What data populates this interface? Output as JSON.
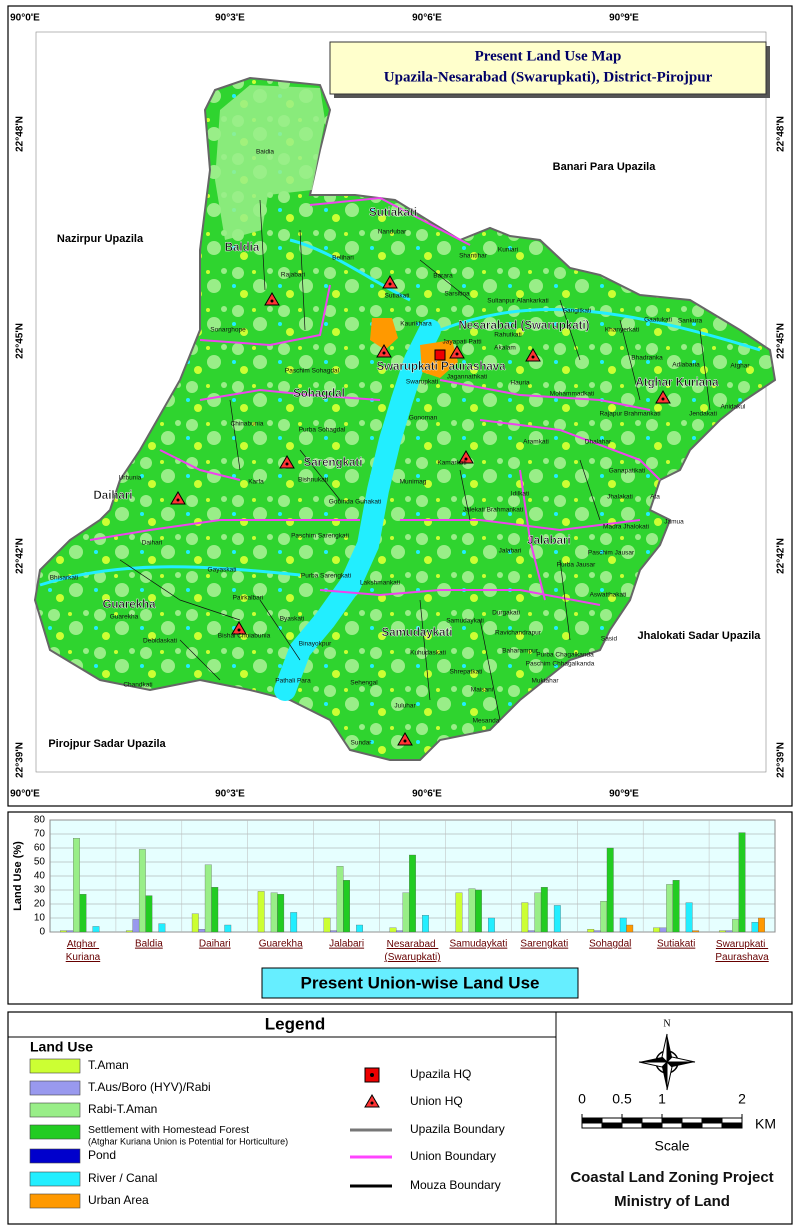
{
  "map": {
    "title": [
      "Present Land Use Map",
      "Upazila-Nesarabad (Swarupkati), District-Pirojpur"
    ],
    "x_labels": [
      "90°0'E",
      "90°3'E",
      "90°6'E",
      "90°9'E"
    ],
    "y_labels": [
      "22°48'N",
      "22°45'N",
      "22°42'N",
      "22°39'N"
    ],
    "neighbors": [
      "Banari Para Upazila",
      "Nazirpur Upazila",
      "Jhalokati Sadar Upazila",
      "Pirojpur Sadar Upazila"
    ],
    "unions": [
      "Sutiakati",
      "Baldia",
      "Nesarabad (Swarupkati)",
      "Swarupkati Paurashava",
      "Sohagdal",
      "Atghar Kuriana",
      "Sarengkati",
      "Daihari",
      "Jalabari",
      "Guarekha",
      "Samudaykati"
    ],
    "mouzas": [
      "Baidia",
      "Nandubar",
      "Belihari",
      "Shantihar",
      "Kuniari",
      "Barara",
      "Rajabari",
      "Sutiakati",
      "Sarsitina",
      "Sultanpur Alankarkati",
      "Sangitkati",
      "Gaatukati",
      "Sankura",
      "Sonarghope",
      "Kaurikhara",
      "Rahutkati",
      "Khanyerkati",
      "Jayapati Patti",
      "Akalam",
      "Hauria",
      "Bhadranka",
      "Adlabaria",
      "Atghar",
      "Swarupkati",
      "Jagannathkati",
      "Mohammadkati",
      "Paschim Sohagdal",
      "Anidakul",
      "Rajapur Brahmankati",
      "Jendakati",
      "Chinabunia",
      "Gonoman",
      "Purba Sohagdal",
      "Aramkati",
      "Dhalahar",
      "Kamarkati",
      "Ganapatikati",
      "Urbunia",
      "Karfa",
      "Bishnukati",
      "Munimag",
      "Gobinda Guhakati",
      "Idilkati",
      "Jhalakati",
      "Ata",
      "Jalekati Brahmankati",
      "Jamua",
      "Madra Jhalokati",
      "Daihari",
      "Paschim Sarengkati",
      "Gayaskati",
      "Jalabari",
      "Paschim Jausar",
      "Bhisarkati",
      "Purba Jausar",
      "Pairkalbari",
      "Purba Sarengkati",
      "Lakshmankati",
      "Aswatthakati",
      "Guarekha",
      "Bishal Choiabunia",
      "Byaskati",
      "Samudaykati",
      "Durgakati",
      "Sasid",
      "Debidaskati",
      "Binayokpur",
      "Kuhudaskati",
      "Ravichandrapur",
      "Baharampur",
      "Purba Chagalkanda",
      "Paschim Chhagalkanda",
      "Chandkati",
      "Pathali Para",
      "Sehengal",
      "Shrepatkati",
      "Muktahar",
      "Maisani",
      "Juluhar",
      "Mesanda",
      "Sundar"
    ]
  },
  "chart_data": {
    "type": "bar",
    "title": "Present Union-wise Land Use",
    "y_label": "Land Use (%)",
    "categories": [
      "Atghar Kuriana",
      "Baldia",
      "Daihari",
      "Guarekha",
      "Jalabari",
      "Nesarabad (Swarupkati)",
      "Samudaykati",
      "Sarengkati",
      "Sohagdal",
      "Sutiakati",
      "Swarupkati Paurashava"
    ],
    "series": [
      {
        "name": "T.Aman",
        "color": "#ccff33",
        "values": [
          1,
          1,
          13,
          29,
          10,
          3,
          28,
          21,
          2,
          3,
          1
        ]
      },
      {
        "name": "T.Aus/Boro (HYV)/Rabi",
        "color": "#9999ee",
        "values": [
          1,
          9,
          2,
          0,
          1,
          1,
          0,
          1,
          1,
          3,
          1
        ]
      },
      {
        "name": "Rabi-T.Aman",
        "color": "#99ee88",
        "values": [
          67,
          59,
          48,
          28,
          47,
          28,
          31,
          28,
          22,
          34,
          9
        ]
      },
      {
        "name": "Settlement with Homestead Forest",
        "color": "#22cc22",
        "values": [
          27,
          26,
          32,
          27,
          37,
          55,
          30,
          32,
          60,
          37,
          71
        ]
      },
      {
        "name": "Pond",
        "color": "#0000cc",
        "values": [
          0,
          0,
          0,
          0,
          0,
          0,
          0,
          0,
          0,
          0,
          0
        ]
      },
      {
        "name": "River / Canal",
        "color": "#22eeff",
        "values": [
          4,
          6,
          5,
          14,
          5,
          12,
          10,
          19,
          10,
          21,
          7
        ]
      },
      {
        "name": "Urban Area",
        "color": "#ff9900",
        "values": [
          0,
          0,
          0,
          0,
          0,
          0,
          0,
          0,
          5,
          1,
          10
        ]
      }
    ],
    "ylim": [
      0,
      80
    ],
    "yticks": [
      0,
      10,
      20,
      30,
      40,
      50,
      60,
      70,
      80
    ],
    "grid": true
  },
  "legend": {
    "title": "Legend",
    "land_use_heading": "Land Use",
    "settlement_note": "(Atghar Kuriana Union is Potential for Horticulture)",
    "symbols": [
      "Upazila HQ",
      "Union HQ",
      "Upazila Boundary",
      "Union Boundary",
      "Mouza Boundary"
    ],
    "north": "N",
    "scale_ticks": [
      0,
      0.5,
      1,
      2
    ],
    "scale_unit": "KM",
    "scale_label": "Scale",
    "credits": [
      "Coastal Land Zoning Project",
      "Ministry of Land"
    ]
  }
}
